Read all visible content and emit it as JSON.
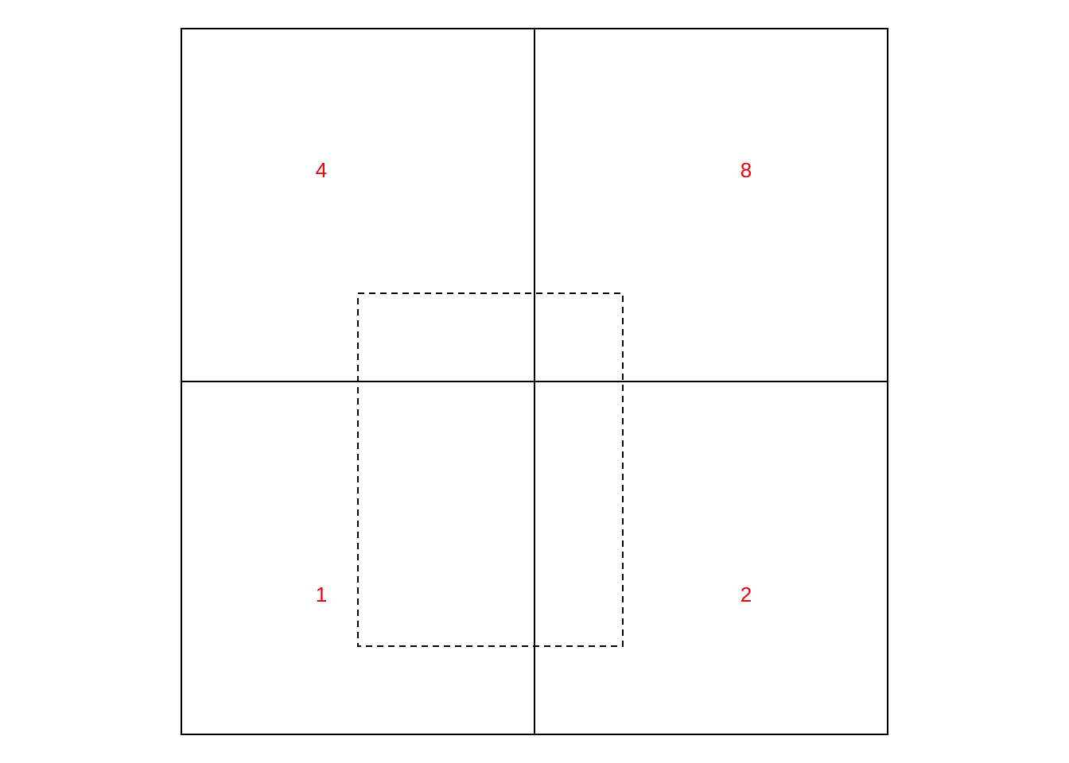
{
  "quadrants": [
    {
      "id": "top-left",
      "label": "4"
    },
    {
      "id": "top-right",
      "label": "8"
    },
    {
      "id": "bottom-left",
      "label": "1"
    },
    {
      "id": "bottom-right",
      "label": "2"
    }
  ],
  "colors": {
    "label": "#e8000b",
    "line": "#000000",
    "background": "#ffffff"
  },
  "styles": {
    "inner_rectangle_line": "dashed"
  }
}
